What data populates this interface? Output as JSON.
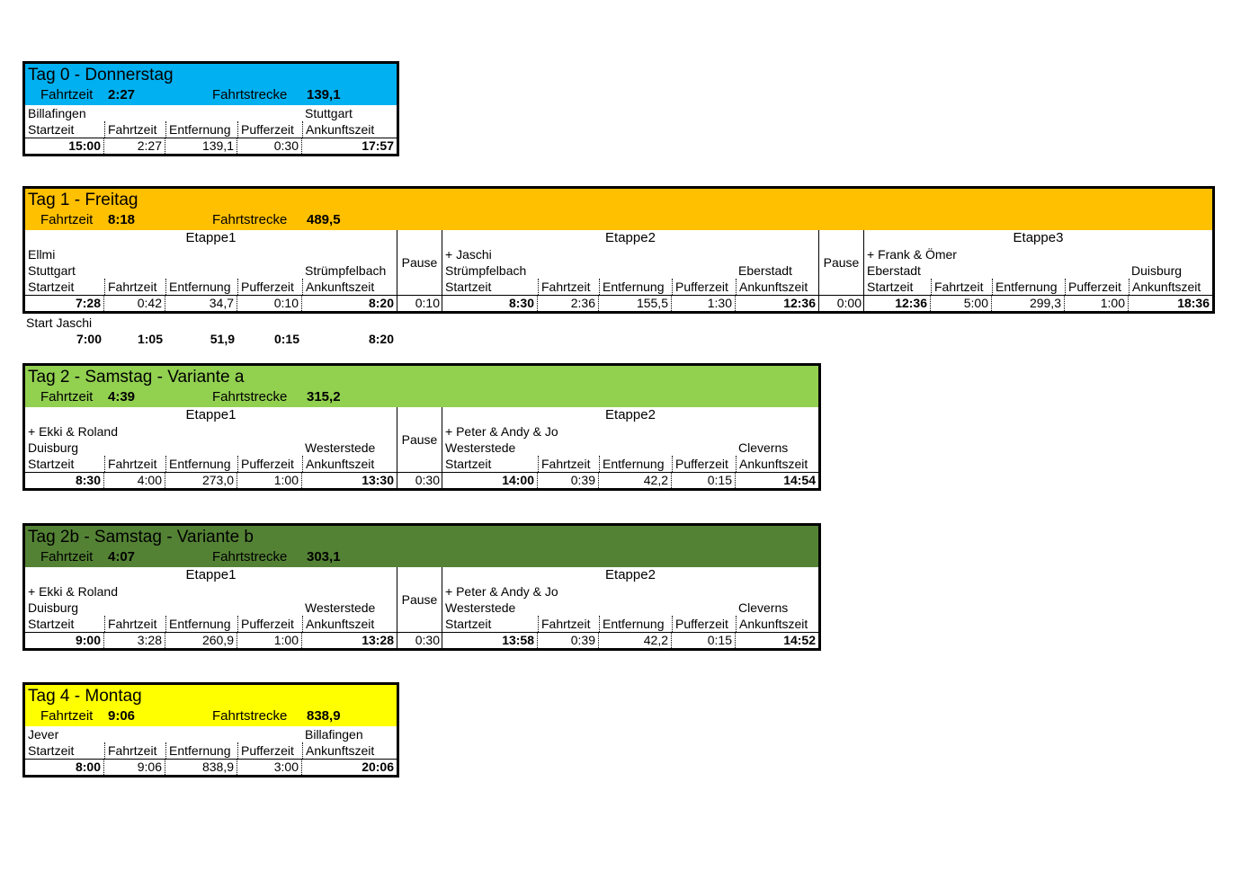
{
  "days": [
    {
      "title": "Tag 0 - Donnerstag",
      "color": "#00b0f0",
      "fahrtzeit_label": "Fahrtzeit",
      "fahrtzeit": "2:27",
      "strecke_label": "Fahrtstrecke",
      "strecke": "139,1",
      "stages": [
        {
          "from": "Billafingen",
          "to": "Stuttgart",
          "columns": [
            "Startzeit",
            "Fahrtzeit",
            "Entfernung",
            "Pufferzeit",
            "Ankunftszeit"
          ],
          "values": [
            "15:00",
            "2:27",
            "139,1",
            "0:30",
            "17:57"
          ]
        }
      ]
    },
    {
      "title": "Tag 1 - Freitag",
      "color": "#ffc000",
      "fahrtzeit_label": "Fahrtzeit",
      "fahrtzeit": "8:18",
      "strecke_label": "Fahrtstrecke",
      "strecke": "489,5",
      "stages": [
        {
          "header": "Etappe1",
          "passenger": "Ellmi",
          "from": "Stuttgart",
          "to": "Strümpfelbach",
          "columns": [
            "Startzeit",
            "Fahrtzeit",
            "Entfernung",
            "Pufferzeit",
            "Ankunftszeit"
          ],
          "values": [
            "7:28",
            "0:42",
            "34,7",
            "0:10",
            "8:20"
          ]
        },
        {
          "header": "Etappe2",
          "passenger": "+ Jaschi",
          "from": "Strümpfelbach",
          "to": "Eberstadt",
          "columns": [
            "Startzeit",
            "Fahrtzeit",
            "Entfernung",
            "Pufferzeit",
            "Ankunftszeit"
          ],
          "values": [
            "8:30",
            "2:36",
            "155,5",
            "1:30",
            "12:36"
          ]
        },
        {
          "header": "Etappe3",
          "passenger": "+ Frank & Ömer",
          "from": "Eberstadt",
          "to": "Duisburg",
          "columns": [
            "Startzeit",
            "Fahrtzeit",
            "Entfernung",
            "Pufferzeit",
            "Ankunftszeit"
          ],
          "values": [
            "12:36",
            "5:00",
            "299,3",
            "1:00",
            "18:36"
          ]
        }
      ],
      "pauses": [
        {
          "label": "Pause",
          "value": "0:10"
        },
        {
          "label": "Pause",
          "value": "0:00"
        }
      ],
      "extra": {
        "label": "Start Jaschi",
        "values": [
          "7:00",
          "1:05",
          "51,9",
          "0:15",
          "8:20"
        ]
      }
    },
    {
      "title": "Tag 2 - Samstag - Variante a",
      "color": "#92d050",
      "fahrtzeit_label": "Fahrtzeit",
      "fahrtzeit": "4:39",
      "strecke_label": "Fahrtstrecke",
      "strecke": "315,2",
      "stages": [
        {
          "header": "Etappe1",
          "passenger": "+ Ekki & Roland",
          "from": "Duisburg",
          "to": "Westerstede",
          "columns": [
            "Startzeit",
            "Fahrtzeit",
            "Entfernung",
            "Pufferzeit",
            "Ankunftszeit"
          ],
          "values": [
            "8:30",
            "4:00",
            "273,0",
            "1:00",
            "13:30"
          ]
        },
        {
          "header": "Etappe2",
          "passenger": "+ Peter & Andy & Jo",
          "from": "Westerstede",
          "to": "Cleverns",
          "columns": [
            "Startzeit",
            "Fahrtzeit",
            "Entfernung",
            "Pufferzeit",
            "Ankunftszeit"
          ],
          "values": [
            "14:00",
            "0:39",
            "42,2",
            "0:15",
            "14:54"
          ]
        }
      ],
      "pauses": [
        {
          "label": "Pause",
          "value": "0:30"
        }
      ]
    },
    {
      "title": "Tag 2b - Samstag - Variante b",
      "color": "#548235",
      "fahrtzeit_label": "Fahrtzeit",
      "fahrtzeit": "4:07",
      "strecke_label": "Fahrtstrecke",
      "strecke": "303,1",
      "stages": [
        {
          "header": "Etappe1",
          "passenger": "+ Ekki & Roland",
          "from": "Duisburg",
          "to": "Westerstede",
          "columns": [
            "Startzeit",
            "Fahrtzeit",
            "Entfernung",
            "Pufferzeit",
            "Ankunftszeit"
          ],
          "values": [
            "9:00",
            "3:28",
            "260,9",
            "1:00",
            "13:28"
          ]
        },
        {
          "header": "Etappe2",
          "passenger": "+ Peter & Andy & Jo",
          "from": "Westerstede",
          "to": "Cleverns",
          "columns": [
            "Startzeit",
            "Fahrtzeit",
            "Entfernung",
            "Pufferzeit",
            "Ankunftszeit"
          ],
          "values": [
            "13:58",
            "0:39",
            "42,2",
            "0:15",
            "14:52"
          ]
        }
      ],
      "pauses": [
        {
          "label": "Pause",
          "value": "0:30"
        }
      ]
    },
    {
      "title": "Tag 4 - Montag",
      "color": "#ffff00",
      "fahrtzeit_label": "Fahrtzeit",
      "fahrtzeit": "9:06",
      "strecke_label": "Fahrtstrecke",
      "strecke": "838,9",
      "stages": [
        {
          "from": "Jever",
          "to": "Billafingen",
          "columns": [
            "Startzeit",
            "Fahrtzeit",
            "Entfernung",
            "Pufferzeit",
            "Ankunftszeit"
          ],
          "values": [
            "8:00",
            "9:06",
            "838,9",
            "3:00",
            "20:06"
          ]
        }
      ]
    }
  ]
}
